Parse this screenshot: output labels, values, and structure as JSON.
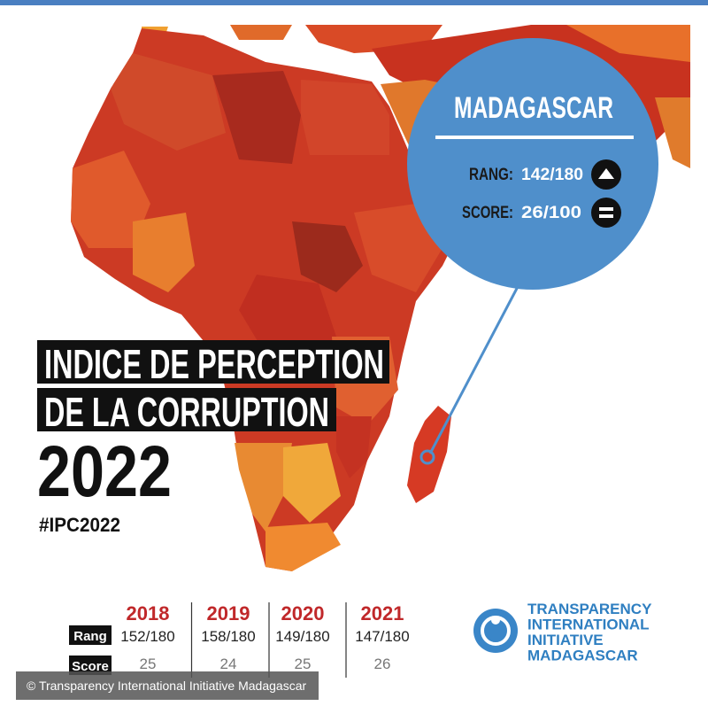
{
  "callout": {
    "country": "MADAGASCAR",
    "rank_label": "RANG:",
    "rank": "142/180",
    "score_label": "SCORE:",
    "score": "26/100"
  },
  "headline": {
    "lines": [
      "INDICE DE PERCEPTION",
      "DE LA CORRUPTION"
    ],
    "year": "2022",
    "hashtag": "#IPC2022"
  },
  "history": {
    "row_labels": [
      "Rang",
      "Score"
    ],
    "columns": [
      {
        "year": "2018",
        "rank": "152/180",
        "score": "25"
      },
      {
        "year": "2019",
        "rank": "158/180",
        "score": "24"
      },
      {
        "year": "2020",
        "rank": "149/180",
        "score": "25"
      },
      {
        "year": "2021",
        "rank": "147/180",
        "score": "26"
      }
    ]
  },
  "logo": {
    "lines": [
      "TRANSPARENCY",
      "INTERNATIONAL",
      "INITIATIVE",
      "MADAGASCAR"
    ]
  },
  "credit": "©  Transparency International Initiative Madagascar"
}
